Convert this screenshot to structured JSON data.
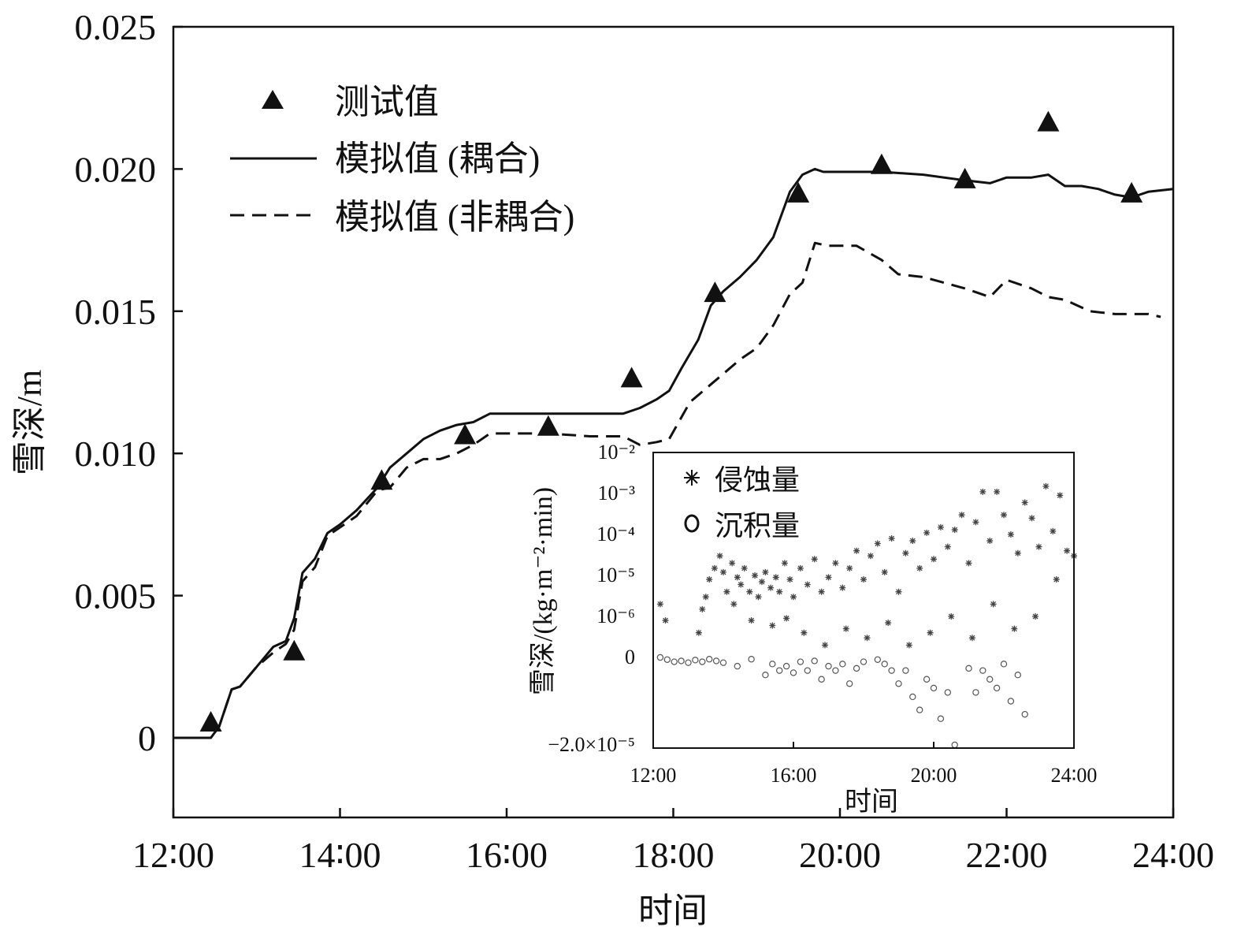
{
  "chart_data": [
    {
      "id": "main",
      "type": "line",
      "title": "",
      "xlabel": "时间",
      "ylabel": "雪深/m",
      "xlim": [
        12,
        24
      ],
      "ylim": [
        -0.0028,
        0.025
      ],
      "x_ticks": [
        12,
        14,
        16,
        18,
        20,
        22,
        24
      ],
      "x_tick_labels": [
        "12∶00",
        "14∶00",
        "16∶00",
        "18∶00",
        "20∶00",
        "22∶00",
        "24∶00"
      ],
      "y_ticks": [
        0,
        0.005,
        0.01,
        0.015,
        0.02,
        0.025
      ],
      "y_tick_labels": [
        "0",
        "0.005",
        "0.010",
        "0.015",
        "0.020",
        "0.025"
      ],
      "legend_position": "top-left",
      "series": [
        {
          "name": "测试值",
          "kind": "scatter",
          "marker": "triangle",
          "x": [
            12.45,
            13.45,
            14.5,
            15.5,
            16.5,
            17.5,
            18.5,
            19.5,
            20.5,
            21.5,
            22.5,
            23.5
          ],
          "y": [
            0.0005,
            0.003,
            0.009,
            0.0106,
            0.0109,
            0.0126,
            0.0156,
            0.0191,
            0.0201,
            0.0196,
            0.0216,
            0.0191
          ]
        },
        {
          "name": "模拟值 (耦合)",
          "kind": "line",
          "style": "solid",
          "x": [
            12.0,
            12.3,
            12.45,
            12.55,
            12.7,
            12.8,
            13.0,
            13.2,
            13.35,
            13.45,
            13.55,
            13.7,
            13.85,
            14.0,
            14.2,
            14.45,
            14.6,
            14.8,
            15.0,
            15.2,
            15.4,
            15.6,
            15.8,
            16.0,
            16.5,
            17.0,
            17.4,
            17.6,
            17.8,
            17.95,
            18.1,
            18.3,
            18.45,
            18.6,
            18.8,
            19.0,
            19.2,
            19.4,
            19.55,
            19.7,
            19.8,
            20.0,
            20.5,
            21.0,
            21.5,
            21.8,
            22.0,
            22.3,
            22.5,
            22.7,
            22.9,
            23.1,
            23.3,
            23.5,
            23.7,
            24.0
          ],
          "y": [
            0.0,
            0.0,
            0.0,
            0.0004,
            0.0017,
            0.0018,
            0.0025,
            0.0032,
            0.0034,
            0.0042,
            0.0058,
            0.0063,
            0.0072,
            0.0075,
            0.008,
            0.0088,
            0.0095,
            0.01,
            0.0105,
            0.0108,
            0.011,
            0.0111,
            0.0114,
            0.0114,
            0.0114,
            0.0114,
            0.0114,
            0.0116,
            0.0119,
            0.0122,
            0.013,
            0.014,
            0.0152,
            0.0157,
            0.0162,
            0.0168,
            0.0176,
            0.0192,
            0.0198,
            0.02,
            0.0199,
            0.0199,
            0.0199,
            0.0198,
            0.0196,
            0.0195,
            0.0197,
            0.0197,
            0.0198,
            0.0194,
            0.0194,
            0.0193,
            0.0191,
            0.019,
            0.0192,
            0.0193
          ]
        },
        {
          "name": "模拟值 (非耦合)",
          "kind": "line",
          "style": "dashed",
          "x": [
            12.0,
            12.3,
            12.45,
            12.55,
            12.7,
            12.8,
            13.0,
            13.2,
            13.35,
            13.45,
            13.55,
            13.7,
            13.85,
            14.0,
            14.2,
            14.45,
            14.6,
            14.8,
            15.0,
            15.2,
            15.4,
            15.6,
            15.8,
            16.0,
            16.5,
            17.0,
            17.4,
            17.6,
            17.8,
            17.95,
            18.2,
            18.4,
            18.6,
            18.8,
            19.0,
            19.2,
            19.4,
            19.55,
            19.7,
            19.85,
            20.0,
            20.2,
            20.5,
            20.7,
            21.0,
            21.5,
            21.8,
            22.0,
            22.3,
            22.5,
            22.7,
            23.0,
            23.3,
            23.7,
            23.85
          ],
          "y": [
            0.0,
            0.0,
            0.0,
            0.0004,
            0.0017,
            0.0018,
            0.0025,
            0.003,
            0.0033,
            0.0038,
            0.0055,
            0.006,
            0.0071,
            0.0074,
            0.0078,
            0.0087,
            0.0088,
            0.0095,
            0.0098,
            0.0098,
            0.01,
            0.0103,
            0.0107,
            0.0107,
            0.0107,
            0.0106,
            0.0106,
            0.0103,
            0.0104,
            0.0105,
            0.0118,
            0.0123,
            0.0128,
            0.0133,
            0.0137,
            0.0145,
            0.0156,
            0.016,
            0.0174,
            0.0173,
            0.0173,
            0.0173,
            0.0168,
            0.0163,
            0.0162,
            0.0158,
            0.0155,
            0.0161,
            0.0158,
            0.0155,
            0.0154,
            0.015,
            0.0149,
            0.0149,
            0.0148
          ]
        }
      ]
    },
    {
      "id": "inset",
      "type": "scatter",
      "title": "",
      "xlabel": "时间",
      "ylabel": "雪深/(kg·m⁻²·min)",
      "xlim": [
        12,
        24
      ],
      "x_ticks": [
        12,
        16,
        20,
        24
      ],
      "x_tick_labels": [
        "12∶00",
        "16∶00",
        "20∶00",
        "24∶00"
      ],
      "y_scale": "symlog",
      "y_ticks": [
        0.01,
        0.001,
        0.0001,
        1e-05,
        1e-06,
        0,
        -2e-05
      ],
      "y_tick_labels": [
        "10⁻²",
        "10⁻³",
        "10⁻⁴",
        "10⁻⁵",
        "10⁻⁶",
        "0",
        "−2.0×10⁻⁵"
      ],
      "legend_position": "top-left",
      "series": [
        {
          "name": "侵蚀量",
          "marker": "asterisk",
          "x": [
            12.2,
            12.35,
            13.3,
            13.5,
            13.6,
            13.75,
            13.9,
            14.0,
            14.1,
            14.25,
            14.4,
            14.5,
            14.6,
            14.75,
            14.9,
            15.0,
            15.1,
            15.2,
            15.35,
            15.5,
            15.6,
            15.75,
            15.9,
            16.0,
            16.2,
            16.4,
            16.6,
            16.8,
            17.0,
            17.2,
            17.4,
            17.6,
            17.8,
            18.0,
            18.2,
            18.4,
            18.6,
            18.8,
            19.0,
            19.2,
            19.4,
            19.6,
            19.8,
            20.0,
            20.2,
            20.4,
            20.6,
            20.8,
            21.0,
            21.2,
            21.4,
            21.6,
            21.8,
            22.0,
            22.2,
            22.4,
            22.6,
            22.8,
            23.0,
            23.2,
            23.4,
            23.6,
            23.8,
            24.0,
            13.4,
            14.3,
            14.8,
            15.4,
            15.8,
            16.3,
            16.9,
            17.5,
            18.1,
            18.7,
            19.3,
            19.9,
            20.5,
            21.1,
            21.7,
            22.3,
            22.9,
            23.5
          ],
          "y": [
            2e-06,
            8e-07,
            4e-07,
            3e-06,
            8e-06,
            1.5e-05,
            3e-05,
            1.2e-05,
            4e-06,
            2e-05,
            9e-06,
            6e-06,
            1.5e-05,
            4e-06,
            1e-05,
            3e-06,
            7e-06,
            1.2e-05,
            5e-06,
            9e-06,
            4e-06,
            2e-05,
            8e-06,
            3e-06,
            1.5e-05,
            6e-06,
            2.5e-05,
            4e-06,
            9e-06,
            2e-05,
            5e-06,
            1.5e-05,
            4e-05,
            8e-06,
            3e-05,
            6e-05,
            1.2e-05,
            8e-05,
            4e-06,
            3.5e-05,
            7e-05,
            1.5e-05,
            0.00011,
            2.5e-05,
            0.00015,
            5e-05,
            0.00013,
            0.0003,
            2e-05,
            0.0002,
            0.0011,
            7e-05,
            0.0011,
            0.0003,
            0.0001,
            3.5e-05,
            0.0006,
            0.00025,
            5e-05,
            0.0015,
            0.00012,
            0.0009,
            4e-05,
            3e-05,
            1.5e-06,
            2e-06,
            8e-07,
            6e-07,
            9e-07,
            4e-07,
            2e-07,
            5e-07,
            3e-07,
            7e-07,
            2e-07,
            4e-07,
            1e-06,
            3e-07,
            2e-06,
            5e-07,
            1e-06,
            8e-06
          ]
        },
        {
          "name": "沉积量",
          "marker": "circle",
          "x": [
            12.2,
            12.4,
            12.6,
            12.8,
            13.0,
            13.2,
            13.4,
            13.6,
            13.8,
            14.0,
            14.4,
            14.8,
            15.2,
            15.4,
            15.6,
            15.8,
            16.0,
            16.2,
            16.4,
            16.6,
            16.8,
            17.0,
            17.2,
            17.4,
            17.6,
            17.8,
            18.0,
            18.4,
            18.6,
            18.8,
            19.0,
            19.2,
            19.4,
            19.6,
            19.8,
            20.0,
            20.2,
            20.4,
            20.6,
            21.0,
            21.2,
            21.4,
            21.6,
            21.8,
            22.0,
            22.2,
            22.4,
            22.6
          ],
          "y": [
            0,
            -5e-07,
            -1e-06,
            -8e-07,
            -1.2e-06,
            -6e-07,
            -1e-06,
            -4e-07,
            -8e-07,
            -1.2e-06,
            -2e-06,
            -4e-07,
            -4e-06,
            -1.5e-06,
            -3e-06,
            -2e-06,
            -3.5e-06,
            -1e-06,
            -3e-06,
            -8e-07,
            -5e-06,
            -2e-06,
            -3e-06,
            -1.5e-06,
            -6e-06,
            -2.5e-06,
            -1e-06,
            -5e-07,
            -1.5e-06,
            -3e-06,
            -6e-06,
            -3e-06,
            -9e-06,
            -1.2e-05,
            -5e-06,
            -7e-06,
            -1.4e-05,
            -8e-06,
            -2e-05,
            -2.5e-06,
            -8e-06,
            -3e-06,
            -5e-06,
            -7e-06,
            -1.5e-06,
            -1e-05,
            -4e-06,
            -1.3e-05
          ]
        }
      ]
    }
  ]
}
